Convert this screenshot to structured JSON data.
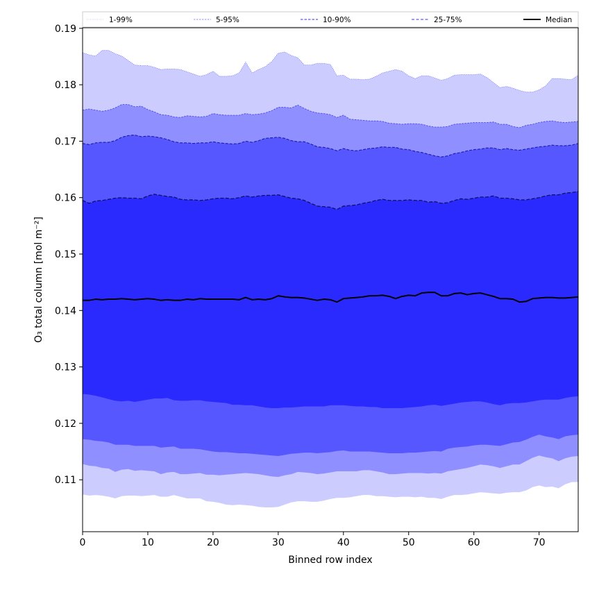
{
  "chart_data": {
    "type": "area",
    "title": "",
    "xlabel": "Binned row index",
    "ylabel": "O₃ total column [mol m⁻²]",
    "xlim": [
      0,
      76
    ],
    "ylim": [
      0.1008,
      0.1901
    ],
    "grid": false,
    "legend_placement": "top",
    "x_ticks": [
      0,
      10,
      20,
      30,
      40,
      50,
      60,
      70
    ],
    "x_tick_labels": [
      "0",
      "10",
      "20",
      "30",
      "40",
      "50",
      "60",
      "70"
    ],
    "y_ticks": [
      0.11,
      0.12,
      0.13,
      0.14,
      0.15,
      0.16,
      0.17,
      0.18,
      0.19
    ],
    "y_tick_labels": [
      "0.11",
      "0.12",
      "0.13",
      "0.14",
      "0.15",
      "0.16",
      "0.17",
      "0.18",
      "0.19"
    ],
    "legend": [
      {
        "label": "1-99%",
        "style": "dotted",
        "color": "#ccccff"
      },
      {
        "label": "5-95%",
        "style": "dashed-thin",
        "color": "#8f8fff"
      },
      {
        "label": "10-90%",
        "style": "dashed",
        "color": "#5757ff"
      },
      {
        "label": "25-75%",
        "style": "dashed-thick",
        "color": "#2a2aff"
      },
      {
        "label": "Median",
        "style": "solid",
        "color": "#000000"
      }
    ],
    "x": [
      0,
      1,
      2,
      3,
      4,
      5,
      6,
      7,
      8,
      9,
      10,
      11,
      12,
      13,
      14,
      15,
      16,
      17,
      18,
      19,
      20,
      21,
      22,
      23,
      24,
      25,
      26,
      27,
      28,
      29,
      30,
      31,
      32,
      33,
      34,
      35,
      36,
      37,
      38,
      39,
      40,
      41,
      42,
      43,
      44,
      45,
      46,
      47,
      48,
      49,
      50,
      51,
      52,
      53,
      54,
      55,
      56,
      57,
      58,
      59,
      60,
      61,
      62,
      63,
      64,
      65,
      66,
      67,
      68,
      69,
      70,
      71,
      72,
      73,
      74,
      75,
      76
    ],
    "bands": [
      {
        "name": "1-99%",
        "fill": "#ccccff",
        "upper": [
          0.1857,
          0.1853,
          0.1851,
          0.1861,
          0.1861,
          0.1855,
          0.1851,
          0.1843,
          0.1835,
          0.1834,
          0.1834,
          0.1831,
          0.1827,
          0.1828,
          0.1828,
          0.1827,
          0.1823,
          0.1819,
          0.1815,
          0.1818,
          0.1824,
          0.1815,
          0.1815,
          0.1816,
          0.1821,
          0.184,
          0.1821,
          0.1827,
          0.1832,
          0.1841,
          0.1856,
          0.1858,
          0.1852,
          0.1848,
          0.1835,
          0.1835,
          0.1838,
          0.1838,
          0.1836,
          0.1816,
          0.1817,
          0.181,
          0.181,
          0.1809,
          0.181,
          0.1815,
          0.1821,
          0.1824,
          0.1827,
          0.1824,
          0.1816,
          0.1811,
          0.1816,
          0.1816,
          0.1812,
          0.1808,
          0.1811,
          0.1817,
          0.1818,
          0.1818,
          0.1818,
          0.1819,
          0.1813,
          0.1804,
          0.1795,
          0.1797,
          0.1794,
          0.179,
          0.1787,
          0.1787,
          0.1791,
          0.1798,
          0.1811,
          0.1811,
          0.181,
          0.1809,
          0.1817
        ],
        "lower": [
          0.1074,
          0.1072,
          0.1073,
          0.1072,
          0.107,
          0.1067,
          0.1071,
          0.1072,
          0.1072,
          0.1071,
          0.1072,
          0.1073,
          0.107,
          0.107,
          0.1073,
          0.107,
          0.1067,
          0.1067,
          0.1067,
          0.1062,
          0.1061,
          0.1059,
          0.1056,
          0.1055,
          0.1056,
          0.1055,
          0.1054,
          0.1052,
          0.1051,
          0.1051,
          0.1052,
          0.1056,
          0.106,
          0.1062,
          0.1062,
          0.1061,
          0.1061,
          0.1063,
          0.1066,
          0.1068,
          0.1068,
          0.1069,
          0.1071,
          0.1073,
          0.1073,
          0.1071,
          0.1071,
          0.107,
          0.1069,
          0.107,
          0.107,
          0.1069,
          0.107,
          0.1068,
          0.1068,
          0.1066,
          0.107,
          0.1073,
          0.1073,
          0.1074,
          0.1076,
          0.1078,
          0.1077,
          0.1076,
          0.1075,
          0.1077,
          0.1078,
          0.1078,
          0.1081,
          0.1087,
          0.109,
          0.1087,
          0.1088,
          0.1085,
          0.1092,
          0.1096,
          0.1096
        ]
      },
      {
        "name": "5-95%",
        "fill": "#8f8fff",
        "upper": [
          0.1755,
          0.1757,
          0.1755,
          0.1753,
          0.1755,
          0.1759,
          0.1765,
          0.1765,
          0.1761,
          0.1762,
          0.1756,
          0.1752,
          0.1747,
          0.1746,
          0.1743,
          0.1742,
          0.1745,
          0.1744,
          0.1743,
          0.1744,
          0.1749,
          0.1747,
          0.1746,
          0.1746,
          0.1746,
          0.1749,
          0.1747,
          0.1748,
          0.175,
          0.1754,
          0.176,
          0.176,
          0.1759,
          0.1764,
          0.1758,
          0.1753,
          0.175,
          0.1749,
          0.1747,
          0.1742,
          0.1746,
          0.1739,
          0.1738,
          0.1737,
          0.1736,
          0.1736,
          0.1735,
          0.1732,
          0.1731,
          0.173,
          0.1731,
          0.1731,
          0.173,
          0.1727,
          0.1725,
          0.1725,
          0.1726,
          0.173,
          0.1731,
          0.1732,
          0.1733,
          0.1733,
          0.1733,
          0.1734,
          0.173,
          0.173,
          0.1726,
          0.1724,
          0.1728,
          0.173,
          0.1733,
          0.1735,
          0.1736,
          0.1734,
          0.1733,
          0.1734,
          0.1735
        ],
        "lower": [
          0.1128,
          0.1125,
          0.1124,
          0.1121,
          0.112,
          0.1114,
          0.1118,
          0.1119,
          0.1116,
          0.1117,
          0.1116,
          0.1115,
          0.111,
          0.1113,
          0.1114,
          0.111,
          0.111,
          0.1111,
          0.1112,
          0.1109,
          0.1109,
          0.1108,
          0.1109,
          0.111,
          0.1111,
          0.1112,
          0.1111,
          0.111,
          0.1108,
          0.1106,
          0.1105,
          0.1108,
          0.111,
          0.1114,
          0.1113,
          0.1112,
          0.111,
          0.1111,
          0.1113,
          0.1115,
          0.1115,
          0.1115,
          0.1115,
          0.1117,
          0.1117,
          0.1115,
          0.1113,
          0.111,
          0.111,
          0.1111,
          0.1112,
          0.1112,
          0.1112,
          0.1111,
          0.1112,
          0.1111,
          0.1115,
          0.1117,
          0.1119,
          0.1121,
          0.1124,
          0.1127,
          0.1126,
          0.1124,
          0.1121,
          0.1124,
          0.1127,
          0.1127,
          0.1133,
          0.1139,
          0.1143,
          0.114,
          0.1138,
          0.1133,
          0.1138,
          0.1141,
          0.1142
        ]
      },
      {
        "name": "10-90%",
        "fill": "#5757ff",
        "upper": [
          0.1696,
          0.1694,
          0.1697,
          0.1698,
          0.1698,
          0.1701,
          0.1707,
          0.171,
          0.1711,
          0.1708,
          0.1709,
          0.1708,
          0.1706,
          0.1703,
          0.1699,
          0.1697,
          0.1697,
          0.1696,
          0.1697,
          0.1697,
          0.1699,
          0.1697,
          0.1696,
          0.1695,
          0.1696,
          0.17,
          0.1698,
          0.1701,
          0.1705,
          0.1706,
          0.1707,
          0.1705,
          0.1701,
          0.1699,
          0.1699,
          0.1695,
          0.169,
          0.1689,
          0.1687,
          0.1683,
          0.1687,
          0.1684,
          0.1683,
          0.1685,
          0.1687,
          0.1688,
          0.169,
          0.1689,
          0.1689,
          0.1686,
          0.1685,
          0.1682,
          0.168,
          0.1677,
          0.1674,
          0.1672,
          0.1674,
          0.1678,
          0.168,
          0.1683,
          0.1685,
          0.1686,
          0.1688,
          0.1688,
          0.1685,
          0.1687,
          0.1685,
          0.1684,
          0.1686,
          0.1688,
          0.169,
          0.1691,
          0.1693,
          0.1692,
          0.1692,
          0.1693,
          0.1696
        ],
        "lower": [
          0.1172,
          0.1171,
          0.1169,
          0.1168,
          0.1166,
          0.1162,
          0.1162,
          0.1162,
          0.116,
          0.116,
          0.116,
          0.116,
          0.1157,
          0.1158,
          0.1159,
          0.1155,
          0.1155,
          0.1155,
          0.1154,
          0.1152,
          0.115,
          0.1149,
          0.1149,
          0.1148,
          0.1147,
          0.1147,
          0.1146,
          0.1145,
          0.1144,
          0.1143,
          0.1142,
          0.1144,
          0.1146,
          0.1147,
          0.1148,
          0.1148,
          0.1147,
          0.1148,
          0.1149,
          0.1151,
          0.1152,
          0.115,
          0.115,
          0.115,
          0.115,
          0.1149,
          0.1148,
          0.1147,
          0.1147,
          0.1147,
          0.1148,
          0.1148,
          0.1149,
          0.115,
          0.1151,
          0.115,
          0.1155,
          0.1157,
          0.1158,
          0.1159,
          0.1161,
          0.1162,
          0.1162,
          0.1161,
          0.116,
          0.1163,
          0.1166,
          0.1167,
          0.1171,
          0.1176,
          0.118,
          0.1177,
          0.1175,
          0.1172,
          0.1177,
          0.1179,
          0.118
        ]
      },
      {
        "name": "25-75%",
        "fill": "#2a2aff",
        "upper": [
          0.1595,
          0.159,
          0.1594,
          0.1595,
          0.1597,
          0.1599,
          0.16,
          0.1599,
          0.1599,
          0.1598,
          0.1603,
          0.1606,
          0.1604,
          0.1602,
          0.1601,
          0.1597,
          0.1596,
          0.1596,
          0.1595,
          0.1596,
          0.1598,
          0.1599,
          0.1599,
          0.1598,
          0.16,
          0.1603,
          0.1601,
          0.1603,
          0.1604,
          0.1604,
          0.1605,
          0.1602,
          0.1599,
          0.1598,
          0.1595,
          0.159,
          0.1585,
          0.1584,
          0.1583,
          0.1579,
          0.1585,
          0.1586,
          0.1587,
          0.159,
          0.1592,
          0.1595,
          0.1597,
          0.1595,
          0.1595,
          0.1595,
          0.1596,
          0.1595,
          0.1595,
          0.1592,
          0.1593,
          0.159,
          0.1591,
          0.1595,
          0.1598,
          0.1597,
          0.1599,
          0.1601,
          0.1601,
          0.1603,
          0.1599,
          0.1599,
          0.1598,
          0.1596,
          0.1596,
          0.1598,
          0.16,
          0.1603,
          0.1605,
          0.1605,
          0.1608,
          0.1609,
          0.1611
        ],
        "lower": [
          0.1252,
          0.1251,
          0.1249,
          0.1246,
          0.1243,
          0.124,
          0.1239,
          0.124,
          0.1238,
          0.124,
          0.1242,
          0.1244,
          0.1244,
          0.1245,
          0.1241,
          0.124,
          0.124,
          0.1241,
          0.1241,
          0.1239,
          0.1238,
          0.1237,
          0.1236,
          0.1233,
          0.1233,
          0.1232,
          0.1232,
          0.123,
          0.1228,
          0.1227,
          0.1227,
          0.1228,
          0.1228,
          0.1229,
          0.123,
          0.123,
          0.123,
          0.123,
          0.1232,
          0.1232,
          0.1232,
          0.1231,
          0.123,
          0.123,
          0.1229,
          0.1229,
          0.1227,
          0.1227,
          0.1227,
          0.1227,
          0.1228,
          0.1229,
          0.123,
          0.1232,
          0.1233,
          0.1231,
          0.1233,
          0.1235,
          0.1237,
          0.1238,
          0.1239,
          0.1239,
          0.1237,
          0.1234,
          0.1232,
          0.1235,
          0.1236,
          0.1236,
          0.1237,
          0.1239,
          0.1241,
          0.1242,
          0.1242,
          0.1242,
          0.1245,
          0.1247,
          0.1248
        ]
      }
    ],
    "median": [
      0.1418,
      0.1418,
      0.142,
      0.1419,
      0.142,
      0.142,
      0.1421,
      0.142,
      0.1419,
      0.142,
      0.1421,
      0.142,
      0.1418,
      0.1419,
      0.1418,
      0.1418,
      0.142,
      0.1419,
      0.1421,
      0.142,
      0.142,
      0.142,
      0.142,
      0.142,
      0.1419,
      0.1423,
      0.1419,
      0.142,
      0.1419,
      0.1421,
      0.1426,
      0.1424,
      0.1423,
      0.1423,
      0.1422,
      0.142,
      0.1418,
      0.142,
      0.1419,
      0.1415,
      0.1421,
      0.1422,
      0.1423,
      0.1424,
      0.1426,
      0.1426,
      0.1427,
      0.1425,
      0.1421,
      0.1425,
      0.1427,
      0.1426,
      0.1431,
      0.1432,
      0.1432,
      0.1426,
      0.1426,
      0.143,
      0.1431,
      0.1428,
      0.143,
      0.1431,
      0.1428,
      0.1425,
      0.1421,
      0.1421,
      0.142,
      0.1415,
      0.1416,
      0.1421,
      0.1422,
      0.1423,
      0.1423,
      0.1422,
      0.1422,
      0.1423,
      0.1424
    ]
  }
}
